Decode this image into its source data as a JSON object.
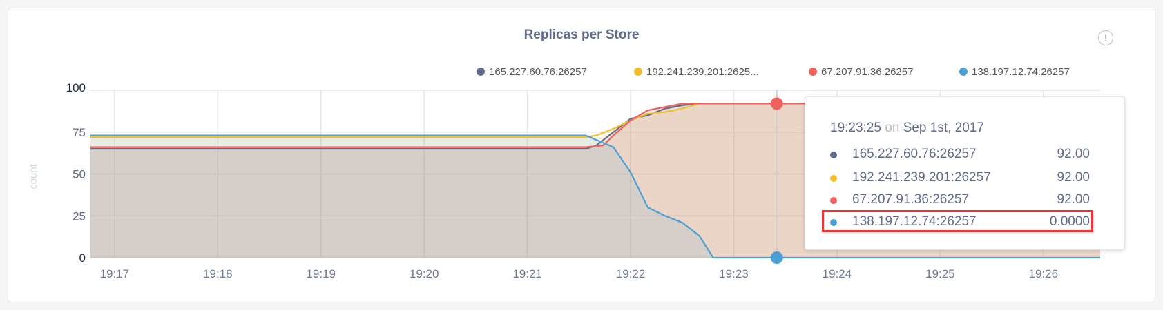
{
  "title": "Replicas per Store",
  "info_icon": "info-circle-icon",
  "chart_data": {
    "type": "area",
    "title": "Replicas per Store",
    "xlabel": "",
    "ylabel": "count",
    "xlim": [
      "19:16:46",
      "19:26:33"
    ],
    "ylim": [
      0,
      100
    ],
    "yticks": [
      "0",
      "25",
      "50",
      "75",
      "100"
    ],
    "xticks": [
      "19:17",
      "19:18",
      "19:19",
      "19:20",
      "19:21",
      "19:22",
      "19:23",
      "19:24",
      "19:25",
      "19:26"
    ],
    "grid": true,
    "legend": "top-right",
    "legend_labels": [
      "165.227.60.76:26257",
      "192.241.239.201:2625...",
      "67.207.91.36:26257",
      "138.197.12.74:26257"
    ],
    "series": [
      {
        "name": "165.227.60.76:26257",
        "color": "#5f6b8a",
        "x": [
          "19:16:46",
          "19:21:34",
          "19:21:40",
          "19:21:50",
          "19:22:00",
          "19:22:10",
          "19:22:20",
          "19:22:30",
          "19:22:40",
          "19:26:33"
        ],
        "y": [
          65,
          65,
          67,
          75,
          83,
          85,
          89,
          91,
          92,
          92
        ]
      },
      {
        "name": "192.241.239.201:26257",
        "color": "#f2be2c",
        "x": [
          "19:16:46",
          "19:21:34",
          "19:21:40",
          "19:21:50",
          "19:22:00",
          "19:22:10",
          "19:22:20",
          "19:22:30",
          "19:22:40",
          "19:26:33"
        ],
        "y": [
          72,
          72,
          73,
          77,
          82,
          86,
          87,
          89,
          92,
          92
        ]
      },
      {
        "name": "67.207.91.36:26257",
        "color": "#f0615e",
        "x": [
          "19:16:46",
          "19:21:34",
          "19:21:44",
          "19:21:50",
          "19:22:00",
          "19:22:10",
          "19:22:20",
          "19:22:30",
          "19:26:33"
        ],
        "y": [
          66,
          66,
          67,
          73,
          82,
          88,
          90,
          92,
          92
        ]
      },
      {
        "name": "138.197.12.74:26257",
        "color": "#4a9fd5",
        "x": [
          "19:16:46",
          "19:21:34",
          "19:21:50",
          "19:22:00",
          "19:22:10",
          "19:22:20",
          "19:22:30",
          "19:22:40",
          "19:22:48",
          "19:26:33"
        ],
        "y": [
          73,
          73,
          66,
          51,
          30,
          25,
          21,
          13,
          0,
          0
        ]
      }
    ]
  },
  "tooltip": {
    "time": "19:23:25",
    "on": "on",
    "date": "Sep 1st, 2017",
    "hover_x": "19:23:25",
    "rows": [
      {
        "label": "165.227.60.76:26257",
        "value": "92.00",
        "color": "#5f6b8a"
      },
      {
        "label": "192.241.239.201:26257",
        "value": "92.00",
        "color": "#f2be2c"
      },
      {
        "label": "67.207.91.36:26257",
        "value": "92.00",
        "color": "#f0615e"
      },
      {
        "label": "138.197.12.74:26257",
        "value": "0.0000",
        "color": "#4a9fd5"
      }
    ]
  }
}
